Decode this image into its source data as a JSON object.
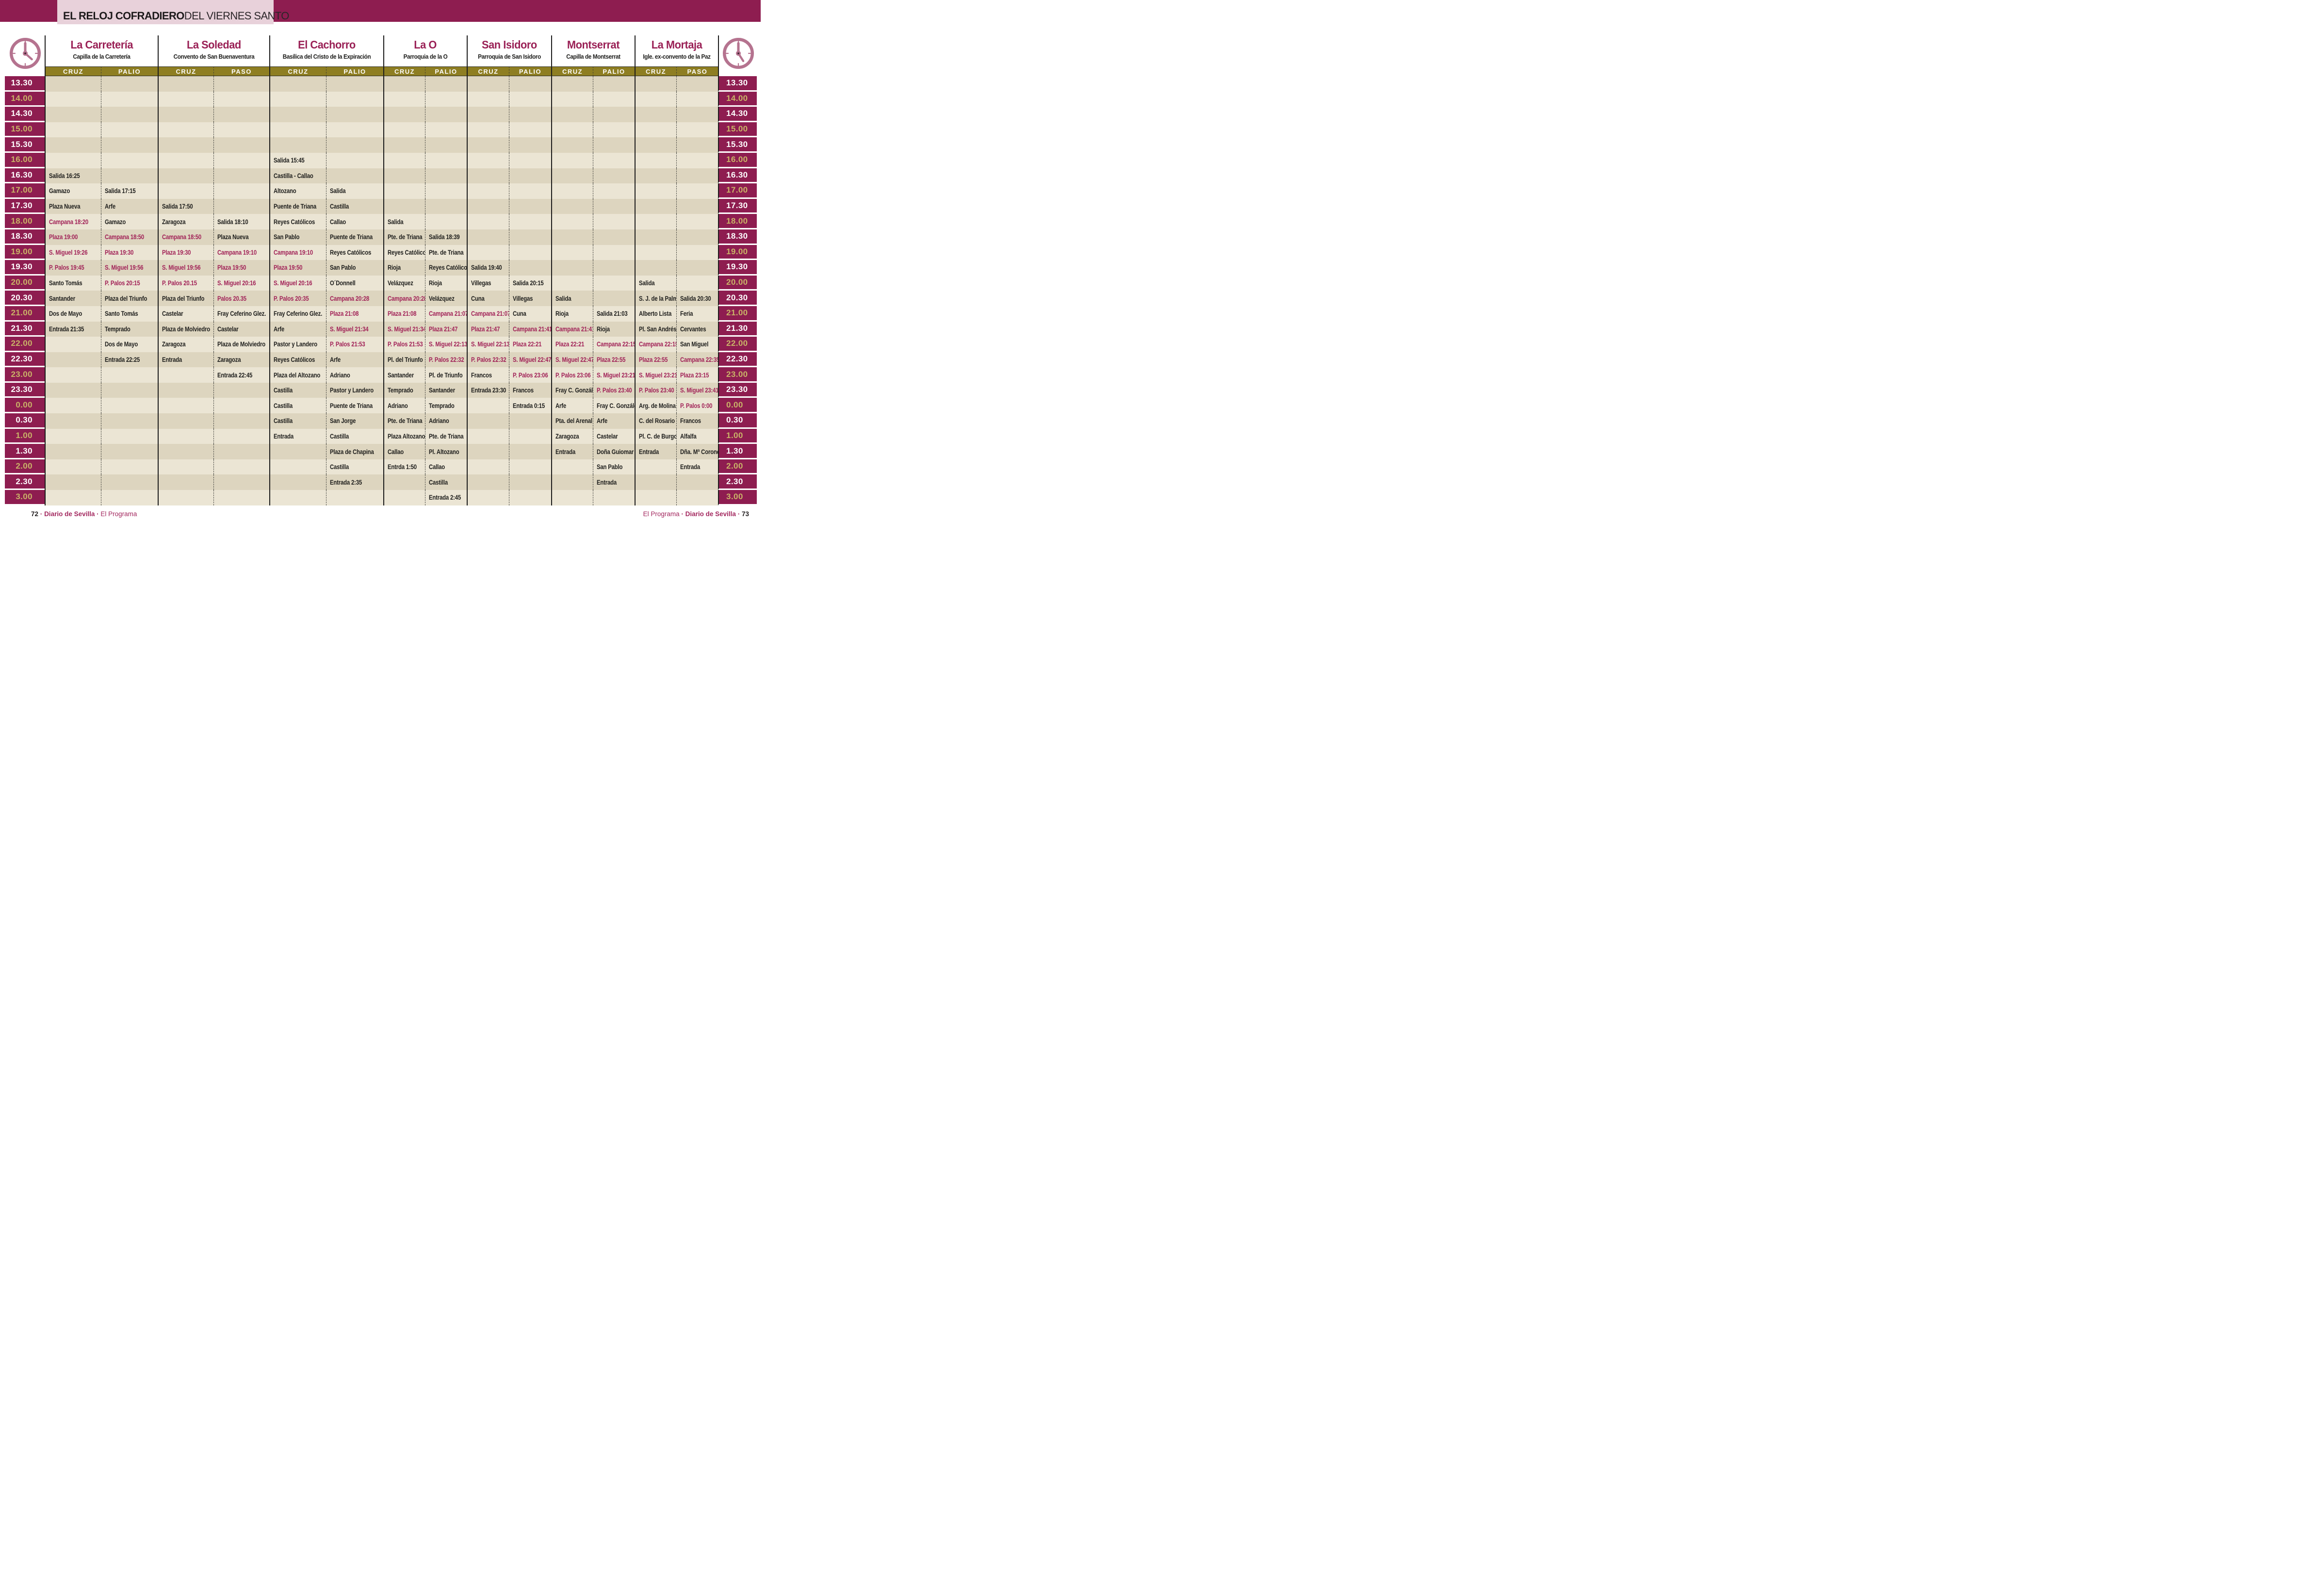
{
  "title": {
    "bold": "EL RELOJ COFRADIERO",
    "regular": " DEL VIERNES SANTO"
  },
  "times": [
    "13.30",
    "14.00",
    "14.30",
    "15.00",
    "15.30",
    "16.00",
    "16.30",
    "17.00",
    "17.30",
    "18.00",
    "18.30",
    "19.00",
    "19.30",
    "20.00",
    "20.30",
    "21.00",
    "21.30",
    "22.00",
    "22.30",
    "23.00",
    "23.30",
    "0.00",
    "0.30",
    "1.00",
    "1.30",
    "2.00",
    "2.30",
    "3.00"
  ],
  "colors": {
    "maroon_bar": "#8e1d50",
    "title_box_pink": "#e8d1da",
    "olive_header": "#8e7e22",
    "gold_time_text": "#c9b267",
    "row_dark": "#ddd5bf",
    "row_light": "#ebe5d4",
    "highlight_text": "#a12257",
    "church_name_text": "#9a2156",
    "clock_icon": "#b5738f"
  },
  "churches": [
    {
      "name": "La Carretería",
      "venue": "Capilla de la Carretería",
      "col1": "CRUZ",
      "col2": "PALIO",
      "c1": [
        [
          6,
          "Salida 16:25",
          0
        ],
        [
          7,
          "Gamazo",
          0
        ],
        [
          8,
          "Plaza Nueva",
          0
        ],
        [
          9,
          "Campana 18:20",
          1
        ],
        [
          10,
          "Plaza 19:00",
          1
        ],
        [
          11,
          "S. Miguel 19:26",
          1
        ],
        [
          12,
          "P. Palos 19:45",
          1
        ],
        [
          13,
          "Santo Tomás",
          0
        ],
        [
          14,
          "Santander",
          0
        ],
        [
          15,
          "Dos de Mayo",
          0
        ],
        [
          16,
          "Entrada 21:35",
          0
        ]
      ],
      "c2": [
        [
          7,
          "Salida 17:15",
          0
        ],
        [
          8,
          "Arfe",
          0
        ],
        [
          9,
          "Gamazo",
          0
        ],
        [
          10,
          "Campana 18:50",
          1
        ],
        [
          11,
          "Plaza 19:30",
          1
        ],
        [
          12,
          "S. Miguel 19:56",
          1
        ],
        [
          13,
          "P. Palos 20:15",
          1
        ],
        [
          14,
          "Plaza del Triunfo",
          0
        ],
        [
          15,
          "Santo Tomás",
          0
        ],
        [
          16,
          "Temprado",
          0
        ],
        [
          17,
          "Dos de Mayo",
          0
        ],
        [
          18,
          "Entrada 22:25",
          0
        ]
      ]
    },
    {
      "name": "La Soledad",
      "venue": "Convento de San Buenaventura",
      "col1": "CRUZ",
      "col2": "PASO",
      "c1": [
        [
          8,
          "Salida 17:50",
          0
        ],
        [
          9,
          "Zaragoza",
          0
        ],
        [
          10,
          "Campana 18:50",
          1
        ],
        [
          11,
          "Plaza 19:30",
          1
        ],
        [
          12,
          "S. Miguel 19:56",
          1
        ],
        [
          13,
          "P. Palos 20.15",
          1
        ],
        [
          14,
          "Plaza del Triunfo",
          0
        ],
        [
          15,
          "Castelar",
          0
        ],
        [
          16,
          "Plaza de Molviedro",
          0
        ],
        [
          17,
          "Zaragoza",
          0
        ],
        [
          18,
          "Entrada",
          0
        ]
      ],
      "c2": [
        [
          9,
          "Salida 18:10",
          0
        ],
        [
          10,
          "Plaza Nueva",
          0
        ],
        [
          11,
          "Campana 19:10",
          1
        ],
        [
          12,
          "Plaza 19:50",
          1
        ],
        [
          13,
          "S. Miguel 20:16",
          1
        ],
        [
          14,
          "Palos 20.35",
          1
        ],
        [
          15,
          "Fray Ceferino Glez.",
          0
        ],
        [
          16,
          "Castelar",
          0
        ],
        [
          17,
          "Plaza de Molviedro",
          0
        ],
        [
          18,
          "Zaragoza",
          0
        ],
        [
          19,
          "Entrada 22:45",
          0
        ]
      ]
    },
    {
      "name": "El Cachorro",
      "venue": "Basílica del Cristo de la Expiración",
      "col1": "CRUZ",
      "col2": "PALIO",
      "c1": [
        [
          5,
          "Salida 15:45",
          0
        ],
        [
          6,
          "Castilla - Callao",
          0
        ],
        [
          7,
          "Altozano",
          0
        ],
        [
          8,
          "Puente de Triana",
          0
        ],
        [
          9,
          "Reyes Católicos",
          0
        ],
        [
          10,
          "San Pablo",
          0
        ],
        [
          11,
          "Campana 19:10",
          1
        ],
        [
          12,
          "Plaza 19:50",
          1
        ],
        [
          13,
          "S. Miguel 20:16",
          1
        ],
        [
          14,
          "P. Palos 20:35",
          1
        ],
        [
          15,
          "Fray Ceferino Glez.",
          0
        ],
        [
          16,
          "Arfe",
          0
        ],
        [
          17,
          "Pastor y Landero",
          0
        ],
        [
          18,
          "Reyes Católicos",
          0
        ],
        [
          19,
          "Plaza del Altozano",
          0
        ],
        [
          20,
          "Castilla",
          0
        ],
        [
          21,
          "Castilla",
          0
        ],
        [
          22,
          "Castilla",
          0
        ],
        [
          23,
          "Entrada",
          0
        ]
      ],
      "c2": [
        [
          7,
          "Salida",
          0
        ],
        [
          8,
          "Castilla",
          0
        ],
        [
          9,
          "Callao",
          0
        ],
        [
          10,
          "Puente de Triana",
          0
        ],
        [
          11,
          "Reyes Católicos",
          0
        ],
        [
          12,
          "San Pablo",
          0
        ],
        [
          13,
          "O´Donnell",
          0
        ],
        [
          14,
          "Campana 20:28",
          1
        ],
        [
          15,
          "Plaza 21:08",
          1
        ],
        [
          16,
          "S. Miguel 21:34",
          1
        ],
        [
          17,
          "P. Palos 21:53",
          1
        ],
        [
          18,
          "Arfe",
          0
        ],
        [
          19,
          "Adriano",
          0
        ],
        [
          20,
          "Pastor y Landero",
          0
        ],
        [
          21,
          "Puente de Triana",
          0
        ],
        [
          22,
          "San Jorge",
          0
        ],
        [
          23,
          "Castilla",
          0
        ],
        [
          24,
          "Plaza de Chapina",
          0
        ],
        [
          25,
          "Castilla",
          0
        ],
        [
          26,
          "Entrada 2:35",
          0
        ]
      ]
    },
    {
      "name": "La O",
      "venue": "Parroquia de la O",
      "col1": "CRUZ",
      "col2": "PALIO",
      "c1": [
        [
          9,
          "Salida",
          0
        ],
        [
          10,
          "Pte. de Triana",
          0
        ],
        [
          11,
          "Reyes Católicos",
          0
        ],
        [
          12,
          "Rioja",
          0
        ],
        [
          13,
          "Velázquez",
          0
        ],
        [
          14,
          "Campana 20:28",
          1
        ],
        [
          15,
          "Plaza 21:08",
          1
        ],
        [
          16,
          "S. Miguel 21:34",
          1
        ],
        [
          17,
          "P. Palos 21:53",
          1
        ],
        [
          18,
          "Pl. del Triunfo",
          0
        ],
        [
          19,
          "Santander",
          0
        ],
        [
          20,
          "Temprado",
          0
        ],
        [
          21,
          "Adriano",
          0
        ],
        [
          22,
          "Pte. de Triana",
          0
        ],
        [
          23,
          "Plaza Altozano",
          0
        ],
        [
          24,
          "Callao",
          0
        ],
        [
          25,
          "Entrda 1:50",
          0
        ]
      ],
      "c2": [
        [
          10,
          "Salida 18:39",
          0
        ],
        [
          11,
          "Pte. de Triana",
          0
        ],
        [
          12,
          "Reyes Católicos",
          0
        ],
        [
          13,
          "Rioja",
          0
        ],
        [
          14,
          "Velázquez",
          0
        ],
        [
          15,
          "Campana 21:07",
          1
        ],
        [
          16,
          "Plaza 21:47",
          1
        ],
        [
          17,
          "S. Miguel 22:13",
          1
        ],
        [
          18,
          "P. Palos 22:32",
          1
        ],
        [
          19,
          "Pl. de Triunfo",
          0
        ],
        [
          20,
          "Santander",
          0
        ],
        [
          21,
          "Temprado",
          0
        ],
        [
          22,
          "Adriano",
          0
        ],
        [
          23,
          "Pte. de Triana",
          0
        ],
        [
          24,
          "Pl. Altozano",
          0
        ],
        [
          25,
          "Callao",
          0
        ],
        [
          26,
          "Castilla",
          0
        ],
        [
          27,
          "Entrada 2:45",
          0
        ]
      ]
    },
    {
      "name": "San Isidoro",
      "venue": "Parroquia de San Isidoro",
      "col1": "CRUZ",
      "col2": "PALIO",
      "c1": [
        [
          12,
          "Salida 19:40",
          0
        ],
        [
          13,
          "Villegas",
          0
        ],
        [
          14,
          "Cuna",
          0
        ],
        [
          15,
          "Campana 21:07",
          1
        ],
        [
          16,
          "Plaza 21:47",
          1
        ],
        [
          17,
          "S. Miguel 22:13",
          1
        ],
        [
          18,
          "P. Palos 22:32",
          1
        ],
        [
          19,
          "Francos",
          0
        ],
        [
          20,
          "Entrada 23:30",
          0
        ]
      ],
      "c2": [
        [
          13,
          "Salida 20:15",
          0
        ],
        [
          14,
          "Villegas",
          0
        ],
        [
          15,
          "Cuna",
          0
        ],
        [
          16,
          "Campana 21:41",
          1
        ],
        [
          17,
          "Plaza 22:21",
          1
        ],
        [
          18,
          "S. Miguel 22:47",
          1
        ],
        [
          19,
          "P. Palos 23:06",
          1
        ],
        [
          20,
          "Francos",
          0
        ],
        [
          21,
          "Entrada 0:15",
          0
        ]
      ]
    },
    {
      "name": "Montserrat",
      "venue": "Capilla de Montserrat",
      "col1": "CRUZ",
      "col2": "PALIO",
      "c1": [
        [
          14,
          "Salida",
          0
        ],
        [
          15,
          "Rioja",
          0
        ],
        [
          16,
          "Campana 21:41",
          1
        ],
        [
          17,
          "Plaza 22:21",
          1
        ],
        [
          18,
          "S. Miguel 22:47",
          1
        ],
        [
          19,
          "P. Palos 23:06",
          1
        ],
        [
          20,
          "Fray C. González",
          0
        ],
        [
          21,
          "Arfe",
          0
        ],
        [
          22,
          "Pta. del Arenal",
          0
        ],
        [
          23,
          "Zaragoza",
          0
        ],
        [
          24,
          "Entrada",
          0
        ]
      ],
      "c2": [
        [
          15,
          "Salida 21:03",
          0
        ],
        [
          16,
          "Rioja",
          0
        ],
        [
          17,
          "Campana 22:15",
          1
        ],
        [
          18,
          "Plaza 22:55",
          1
        ],
        [
          19,
          "S. Miguel 23:21",
          1
        ],
        [
          20,
          "P. Palos 23:40",
          1
        ],
        [
          21,
          "Fray C. González",
          0
        ],
        [
          22,
          "Arfe",
          0
        ],
        [
          23,
          "Castelar",
          0
        ],
        [
          24,
          "Doña Guiomar",
          0
        ],
        [
          25,
          "San Pablo",
          0
        ],
        [
          26,
          "Entrada",
          0
        ]
      ]
    },
    {
      "name": "La Mortaja",
      "venue": "Igle. ex-convento de la Paz",
      "col1": "CRUZ",
      "col2": "PASO",
      "c1": [
        [
          13,
          "Salida",
          0
        ],
        [
          14,
          "S. J. de la Palma",
          0
        ],
        [
          15,
          "Alberto Lista",
          0
        ],
        [
          16,
          "Pl. San Andrés",
          0
        ],
        [
          17,
          "Campana 22:15",
          1
        ],
        [
          18,
          "Plaza 22:55",
          1
        ],
        [
          19,
          "S. Miguel 23:21",
          1
        ],
        [
          20,
          "P. Palos 23:40",
          1
        ],
        [
          21,
          "Arg. de Molina",
          0
        ],
        [
          22,
          "C. del Rosario",
          0
        ],
        [
          23,
          "Pl. C. de Burgos",
          0
        ],
        [
          24,
          "Entrada",
          0
        ]
      ],
      "c2": [
        [
          14,
          "Salida 20:30",
          0
        ],
        [
          15,
          "Feria",
          0
        ],
        [
          16,
          "Cervantes",
          0
        ],
        [
          17,
          "San Miguel",
          0
        ],
        [
          18,
          "Campana 22:35",
          1
        ],
        [
          19,
          "Plaza 23:15",
          1
        ],
        [
          20,
          "S. Miguel 23:41",
          1
        ],
        [
          21,
          "P. Palos 0:00",
          1
        ],
        [
          22,
          "Francos",
          0
        ],
        [
          23,
          "Alfalfa",
          0
        ],
        [
          24,
          "Dña. Mª Coronel",
          0
        ],
        [
          25,
          "Entrada",
          0
        ]
      ]
    }
  ],
  "footer": {
    "left_page": "72",
    "right_page": "73",
    "brand": "Diario de Sevilla",
    "program": "El Programa",
    "separator": "·"
  }
}
